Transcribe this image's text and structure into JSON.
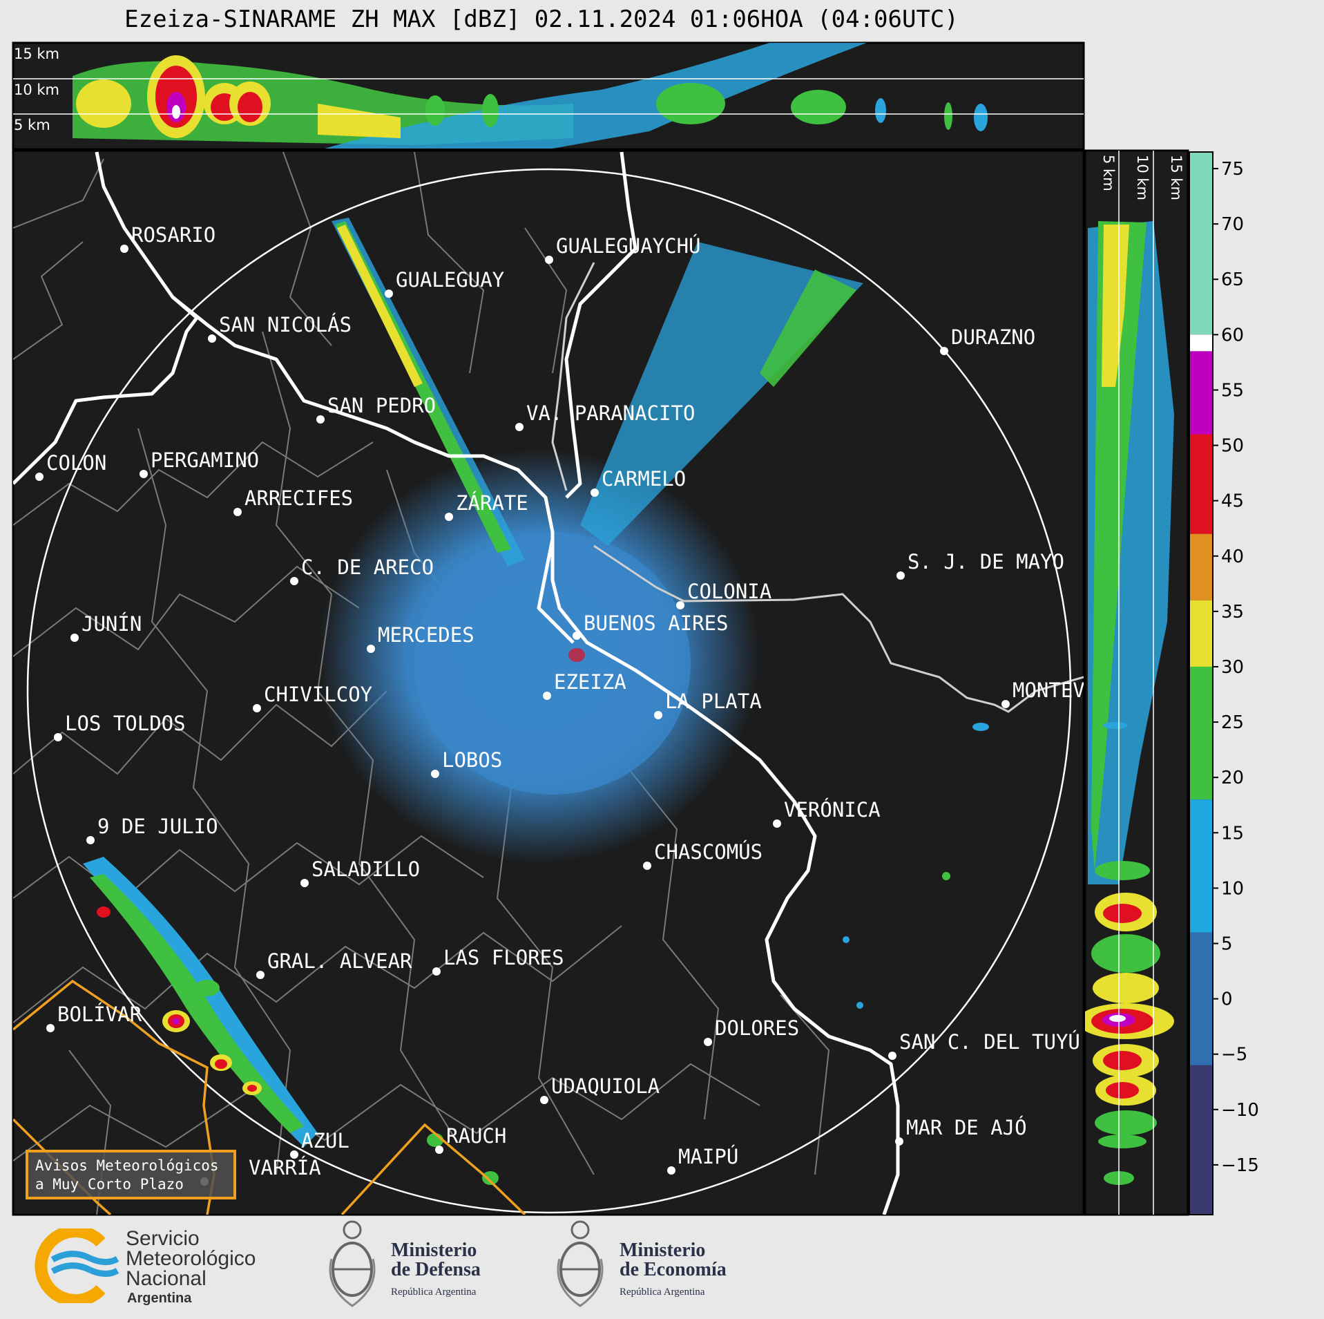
{
  "title": "Ezeiza-SINARAME ZH MAX [dBZ] 02.11.2024 01:06HOA (04:06UTC)",
  "top_panel_heights": [
    "15 km",
    "10 km",
    "5 km"
  ],
  "side_panel_heights": [
    "5 km",
    "10 km",
    "15 km"
  ],
  "colorbar": {
    "ticks": [
      "75",
      "70",
      "65",
      "60",
      "55",
      "50",
      "45",
      "40",
      "35",
      "30",
      "25",
      "20",
      "15",
      "10",
      "5",
      "0",
      "−5",
      "−10",
      "−15"
    ],
    "colors": {
      "teal_high": "#80d8b8",
      "white": "#ffffff",
      "magenta": "#c000c0",
      "red": "#e01020",
      "orange": "#e09020",
      "yellow": "#e8e030",
      "green": "#40c040",
      "cyan": "#20a8e0",
      "blue": "#3070b0",
      "dark": "#3a3a70"
    }
  },
  "cities": [
    {
      "name": "ROSARIO"
    },
    {
      "name": "GUALEGUAYCHÚ"
    },
    {
      "name": "GUALEGUAY"
    },
    {
      "name": "SAN NICOLÁS"
    },
    {
      "name": "DURAZNO"
    },
    {
      "name": "SAN PEDRO"
    },
    {
      "name": "VA. PARANACITO"
    },
    {
      "name": "COLON"
    },
    {
      "name": "PERGAMINO"
    },
    {
      "name": "CARMELO"
    },
    {
      "name": "ARRECIFES"
    },
    {
      "name": "ZÁRATE"
    },
    {
      "name": "S. J. DE MAYO"
    },
    {
      "name": "C. DE ARECO"
    },
    {
      "name": "COLONIA"
    },
    {
      "name": "JUNÍN"
    },
    {
      "name": "BUENOS AIRES"
    },
    {
      "name": "MERCEDES"
    },
    {
      "name": "EZEIZA"
    },
    {
      "name": "MONTEV"
    },
    {
      "name": "CHIVILCOY"
    },
    {
      "name": "LA PLATA"
    },
    {
      "name": "LOS TOLDOS"
    },
    {
      "name": "LOBOS"
    },
    {
      "name": "VERÓNICA"
    },
    {
      "name": "9 DE JULIO"
    },
    {
      "name": "CHASCOMÚS"
    },
    {
      "name": "SALADILLO"
    },
    {
      "name": "GRAL. ALVEAR"
    },
    {
      "name": "LAS FLORES"
    },
    {
      "name": "BOLÍVAR"
    },
    {
      "name": "DOLORES"
    },
    {
      "name": "SAN C. DEL TUYÚ"
    },
    {
      "name": "UDAQUIOLA"
    },
    {
      "name": "MAR DE AJÓ"
    },
    {
      "name": "RAUCH"
    },
    {
      "name": "AZUL"
    },
    {
      "name": "MAIPÚ"
    },
    {
      "name": "VARRÍA"
    }
  ],
  "warning_box": [
    "Avisos Meteorológicos",
    "a Muy Corto Plazo"
  ],
  "logos": {
    "smn": [
      "Servicio",
      "Meteorológico",
      "Nacional",
      "Argentina"
    ],
    "defensa": [
      "Ministerio",
      "de Defensa",
      "República Argentina"
    ],
    "economia": [
      "Ministerio",
      "de Economía",
      "República Argentina"
    ]
  }
}
